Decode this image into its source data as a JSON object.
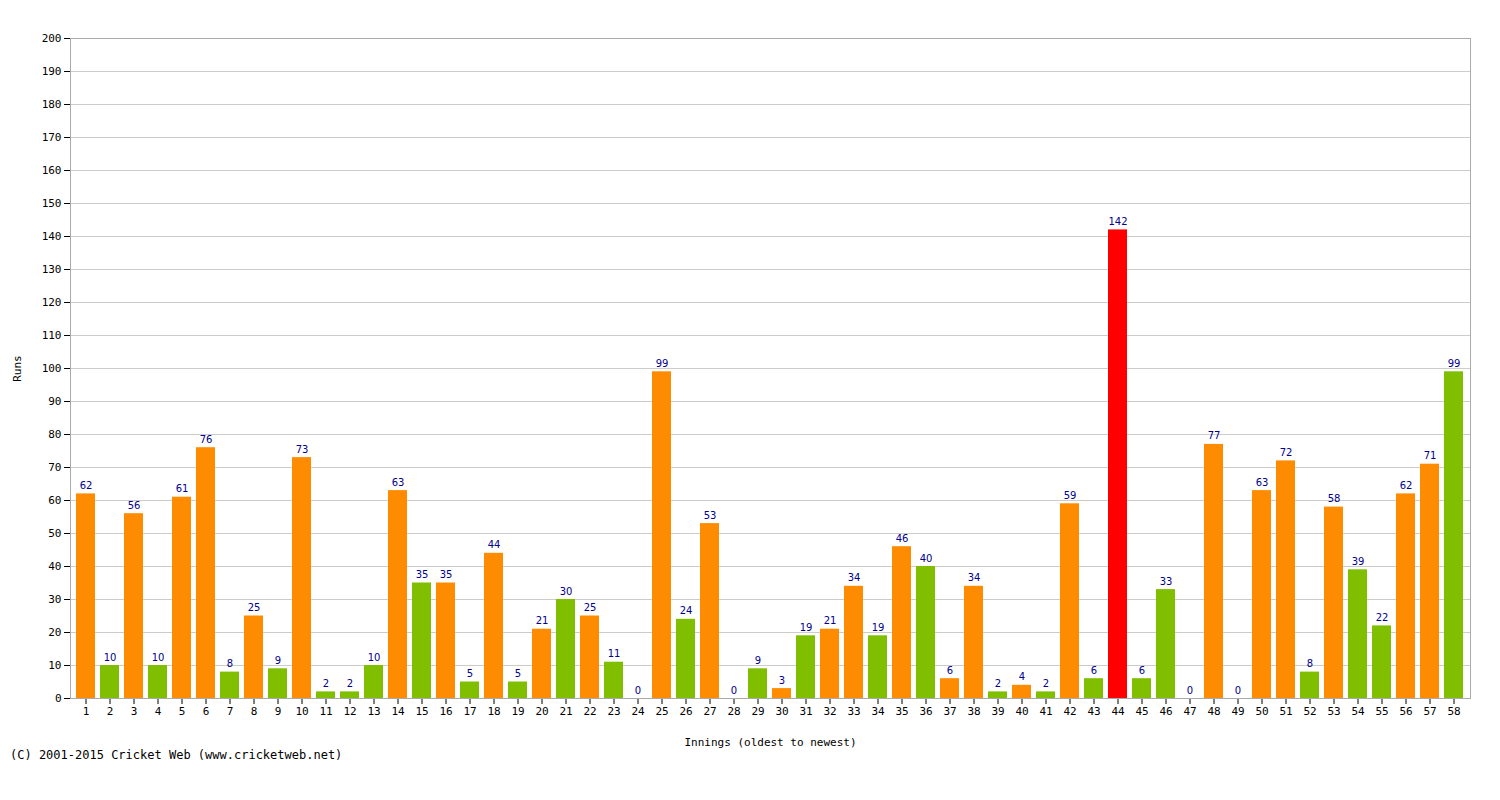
{
  "chart_data": {
    "type": "bar",
    "xlabel": "Innings (oldest to newest)",
    "ylabel": "Runs",
    "annotations": [
      "(C) 2001-2015 Cricket Web (www.cricketweb.net)"
    ],
    "categories": [
      1,
      2,
      3,
      4,
      5,
      6,
      7,
      8,
      9,
      10,
      11,
      12,
      13,
      14,
      15,
      16,
      17,
      18,
      19,
      20,
      21,
      22,
      23,
      24,
      25,
      26,
      27,
      28,
      29,
      30,
      31,
      32,
      33,
      34,
      35,
      36,
      37,
      38,
      39,
      40,
      41,
      42,
      43,
      44,
      45,
      46,
      47,
      48,
      49,
      50,
      51,
      52,
      53,
      54,
      55,
      56,
      57,
      58
    ],
    "values": [
      62,
      10,
      56,
      10,
      61,
      76,
      8,
      25,
      9,
      73,
      2,
      2,
      10,
      63,
      35,
      35,
      5,
      44,
      5,
      21,
      30,
      25,
      11,
      0,
      99,
      24,
      53,
      0,
      9,
      3,
      19,
      21,
      34,
      19,
      46,
      40,
      6,
      34,
      2,
      4,
      2,
      59,
      6,
      142,
      6,
      33,
      0,
      77,
      0,
      63,
      72,
      8,
      58,
      39,
      22,
      62,
      71,
      99
    ],
    "colors": [
      "#FF8C00",
      "#7FBF00",
      "#FF8C00",
      "#7FBF00",
      "#FF8C00",
      "#FF8C00",
      "#7FBF00",
      "#FF8C00",
      "#7FBF00",
      "#FF8C00",
      "#7FBF00",
      "#7FBF00",
      "#7FBF00",
      "#FF8C00",
      "#7FBF00",
      "#FF8C00",
      "#7FBF00",
      "#FF8C00",
      "#7FBF00",
      "#FF8C00",
      "#7FBF00",
      "#FF8C00",
      "#7FBF00",
      "#FF8C00",
      "#FF8C00",
      "#7FBF00",
      "#FF8C00",
      "#FF8C00",
      "#7FBF00",
      "#FF8C00",
      "#7FBF00",
      "#FF8C00",
      "#FF8C00",
      "#7FBF00",
      "#FF8C00",
      "#7FBF00",
      "#FF8C00",
      "#FF8C00",
      "#7FBF00",
      "#FF8C00",
      "#7FBF00",
      "#FF8C00",
      "#7FBF00",
      "#FF0000",
      "#7FBF00",
      "#7FBF00",
      "#FF8C00",
      "#FF8C00",
      "#FF8C00",
      "#FF8C00",
      "#FF8C00",
      "#7FBF00",
      "#FF8C00",
      "#7FBF00",
      "#7FBF00",
      "#FF8C00",
      "#FF8C00",
      "#7FBF00"
    ],
    "ylim": [
      0,
      200
    ],
    "yticks": [
      0,
      10,
      20,
      30,
      40,
      50,
      60,
      70,
      80,
      90,
      100,
      110,
      120,
      130,
      140,
      150,
      160,
      170,
      180,
      190,
      200
    ],
    "grid": true,
    "data_labels": true
  }
}
